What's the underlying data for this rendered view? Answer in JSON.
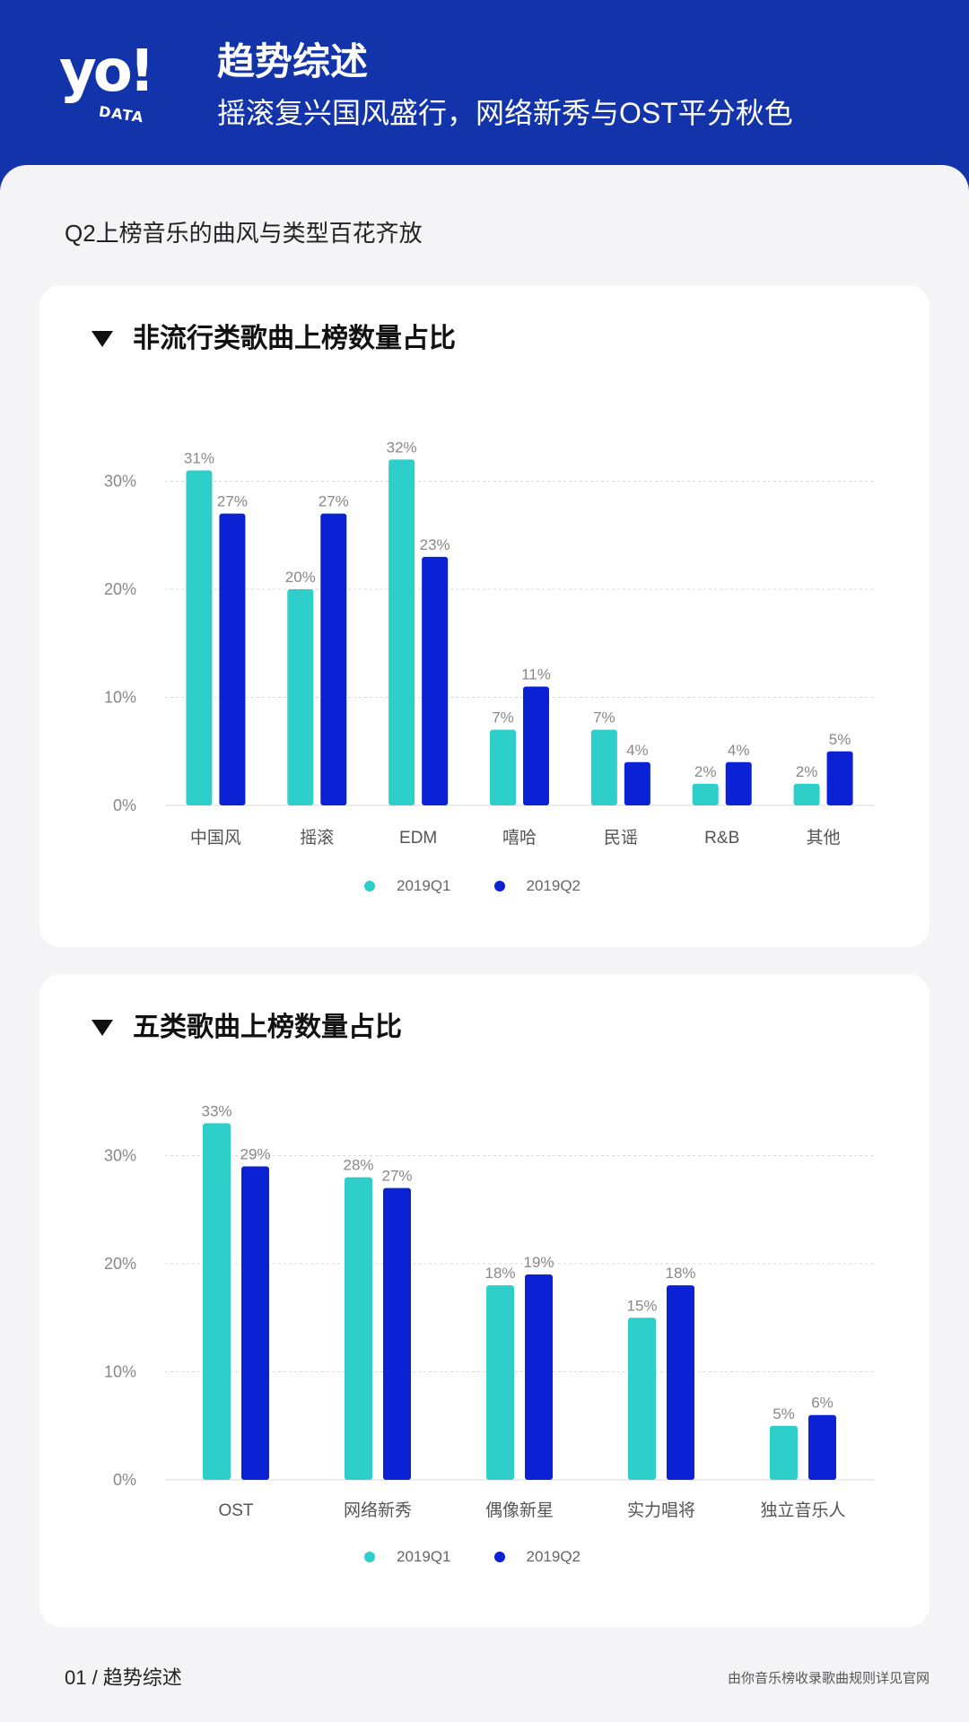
{
  "header": {
    "logo_main": "yo!",
    "logo_sub": "DATA",
    "title": "趋势综述",
    "subtitle": "摇滚复兴国风盛行，网络新秀与OST平分秋色"
  },
  "section_title": "Q2上榜音乐的曲风与类型百花齐放",
  "colors": {
    "q1": "#2ecfcb",
    "q2": "#0a21d4",
    "grid": "#d8d8dc",
    "axis_text": "#888888"
  },
  "chart_data": [
    {
      "type": "bar",
      "title": "非流行类歌曲上榜数量占比",
      "categories": [
        "中国风",
        "摇滚",
        "EDM",
        "嘻哈",
        "民谣",
        "R&B",
        "其他"
      ],
      "series": [
        {
          "name": "2019Q1",
          "values": [
            31,
            20,
            32,
            7,
            7,
            2,
            2
          ],
          "labels": [
            "31%",
            "20%",
            "32%",
            "7%",
            "7%",
            "2%",
            "2%"
          ]
        },
        {
          "name": "2019Q2",
          "values": [
            27,
            27,
            23,
            11,
            4,
            4,
            5
          ],
          "labels": [
            "27%",
            "27%",
            "23%",
            "11%",
            "4%",
            "4%",
            "5%"
          ]
        }
      ],
      "yticks": [
        0,
        10,
        20,
        30
      ],
      "ytick_labels": [
        "0%",
        "10%",
        "20%",
        "30%"
      ],
      "ylim": [
        0,
        33
      ],
      "grid": true,
      "legend": "bottom-center"
    },
    {
      "type": "bar",
      "title": "五类歌曲上榜数量占比",
      "categories": [
        "OST",
        "网络新秀",
        "偶像新星",
        "实力唱将",
        "独立音乐人"
      ],
      "series": [
        {
          "name": "2019Q1",
          "values": [
            33,
            28,
            18,
            15,
            5
          ],
          "labels": [
            "33%",
            "28%",
            "18%",
            "15%",
            "5%"
          ]
        },
        {
          "name": "2019Q2",
          "values": [
            29,
            27,
            19,
            18,
            6
          ],
          "labels": [
            "29%",
            "27%",
            "19%",
            "18%",
            "6%"
          ]
        }
      ],
      "yticks": [
        0,
        10,
        20,
        30
      ],
      "ytick_labels": [
        "0%",
        "10%",
        "20%",
        "30%"
      ],
      "ylim": [
        0,
        33
      ],
      "grid": true,
      "legend": "bottom-center"
    }
  ],
  "footer": {
    "left": "01 / 趋势综述",
    "right": "由你音乐榜收录歌曲规则详见官网"
  }
}
